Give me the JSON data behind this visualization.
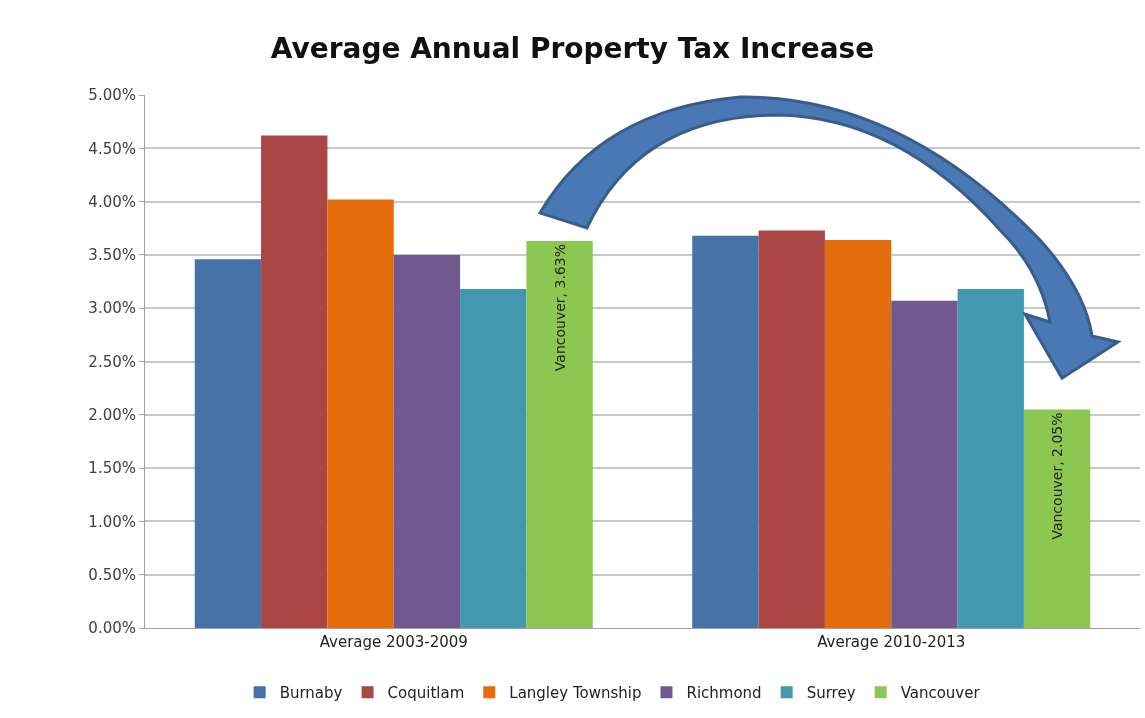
{
  "chart_data": {
    "type": "bar",
    "title": "Average Annual Property Tax Increase",
    "categories": [
      "Average 2003-2009",
      "Average 2010-2013"
    ],
    "series": [
      {
        "name": "Burnaby",
        "color": "#4572a7",
        "values": [
          3.46,
          3.68
        ]
      },
      {
        "name": "Coquitlam",
        "color": "#aa4643",
        "values": [
          4.62,
          3.73
        ]
      },
      {
        "name": "Langley Township",
        "color": "#e46c0a",
        "values": [
          4.02,
          3.64
        ]
      },
      {
        "name": "Richmond",
        "color": "#71588f",
        "values": [
          3.5,
          3.07
        ]
      },
      {
        "name": "Surrey",
        "color": "#4198af",
        "values": [
          3.18,
          3.18
        ]
      },
      {
        "name": "Vancouver",
        "color": "#8cc751",
        "values": [
          3.63,
          2.05
        ],
        "value_labels": [
          "Vancouver, 3.63%",
          "Vancouver, 2.05%"
        ]
      }
    ],
    "ylim": [
      0,
      5
    ],
    "yticks": [
      {
        "value": 0,
        "label": "0.00%"
      },
      {
        "value": 0.5,
        "label": "0.50%"
      },
      {
        "value": 1,
        "label": "1.00%"
      },
      {
        "value": 1.5,
        "label": "1.50%"
      },
      {
        "value": 2,
        "label": "2.00%"
      },
      {
        "value": 2.5,
        "label": "2.50%"
      },
      {
        "value": 3,
        "label": "3.00%"
      },
      {
        "value": 3.5,
        "label": "3.50%"
      },
      {
        "value": 4,
        "label": "4.00%"
      },
      {
        "value": 4.5,
        "label": "4.50%"
      },
      {
        "value": 5,
        "label": "5.00%"
      }
    ],
    "grid": "y",
    "legend": "bottom"
  }
}
